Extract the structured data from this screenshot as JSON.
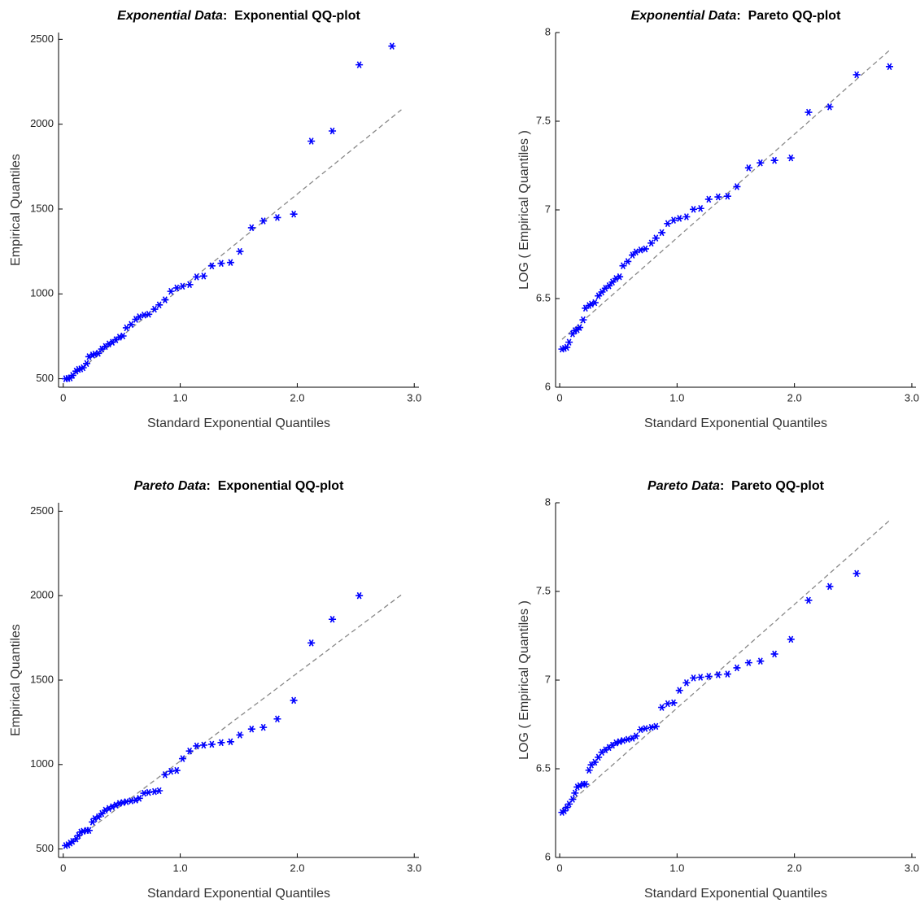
{
  "chart_data": [
    {
      "type": "scatter",
      "title": [
        "Exponential Data",
        ":  Exponential QQ-plot"
      ],
      "xlabel": "Standard Exponential Quantiles",
      "ylabel": "Empirical Quantiles",
      "xlim": [
        -0.04,
        3.04
      ],
      "ylim": [
        450,
        2540
      ],
      "xticks": [
        0,
        {
          "value": 1,
          "label": "1.0"
        },
        {
          "value": 2,
          "label": "2.0"
        },
        {
          "value": 3,
          "label": "3.0"
        }
      ],
      "yticks": [
        500,
        1000,
        1500,
        2000,
        2500
      ],
      "series": [
        {
          "color": "#0000ff",
          "x": [
            0.02,
            0.04,
            0.06,
            0.08,
            0.11,
            0.13,
            0.15,
            0.17,
            0.2,
            0.22,
            0.25,
            0.27,
            0.3,
            0.33,
            0.36,
            0.39,
            0.42,
            0.45,
            0.48,
            0.51,
            0.54,
            0.58,
            0.62,
            0.65,
            0.69,
            0.73,
            0.78,
            0.82,
            0.87,
            0.92,
            0.97,
            1.02,
            1.08,
            1.14,
            1.2,
            1.27,
            1.35,
            1.43,
            1.51,
            1.61,
            1.71,
            1.83,
            1.97,
            2.12,
            2.3,
            2.53,
            2.81
          ],
          "values": [
            500,
            502,
            505,
            520,
            545,
            555,
            558,
            565,
            590,
            630,
            640,
            645,
            650,
            675,
            690,
            705,
            715,
            730,
            745,
            752,
            800,
            820,
            850,
            865,
            875,
            880,
            910,
            935,
            965,
            1015,
            1035,
            1045,
            1055,
            1100,
            1105,
            1165,
            1180,
            1185,
            1250,
            1390,
            1430,
            1450,
            1470,
            1900,
            1960,
            2350,
            2460
          ]
        }
      ],
      "reference_line": {
        "color": "#888888",
        "x": [
          0.05,
          2.89
        ],
        "y": [
          500,
          2085
        ]
      }
    },
    {
      "type": "scatter",
      "title": [
        "Exponential Data",
        ":  Pareto QQ-plot"
      ],
      "xlabel": "Standard Exponential Quantiles",
      "ylabel": "LOG ( Empirical Quantiles )",
      "xlim": [
        -0.035,
        3.035
      ],
      "ylim": [
        6,
        8
      ],
      "xticks": [
        0,
        {
          "value": 1,
          "label": "1.0"
        },
        {
          "value": 2,
          "label": "2.0"
        },
        {
          "value": 3,
          "label": "3.0"
        }
      ],
      "yticks": [
        6,
        6.5,
        7,
        7.5,
        8
      ],
      "series": [
        {
          "color": "#0000ff",
          "x": [
            0.02,
            0.04,
            0.06,
            0.08,
            0.11,
            0.13,
            0.15,
            0.17,
            0.2,
            0.22,
            0.25,
            0.27,
            0.3,
            0.33,
            0.36,
            0.39,
            0.42,
            0.45,
            0.48,
            0.51,
            0.54,
            0.58,
            0.62,
            0.65,
            0.69,
            0.73,
            0.78,
            0.82,
            0.87,
            0.92,
            0.97,
            1.02,
            1.08,
            1.14,
            1.2,
            1.27,
            1.35,
            1.43,
            1.51,
            1.61,
            1.71,
            1.83,
            1.97,
            2.12,
            2.3,
            2.53,
            2.81
          ],
          "values": [
            6.215,
            6.219,
            6.225,
            6.254,
            6.301,
            6.319,
            6.324,
            6.337,
            6.38,
            6.446,
            6.461,
            6.469,
            6.477,
            6.515,
            6.537,
            6.558,
            6.572,
            6.593,
            6.613,
            6.623,
            6.685,
            6.709,
            6.745,
            6.763,
            6.774,
            6.78,
            6.813,
            6.841,
            6.872,
            6.923,
            6.942,
            6.952,
            6.961,
            7.003,
            7.008,
            7.06,
            7.073,
            7.077,
            7.131,
            7.237,
            7.265,
            7.279,
            7.293,
            7.55,
            7.581,
            7.762,
            7.808
          ]
        }
      ],
      "reference_line": {
        "color": "#888888",
        "x": [
          0.02,
          2.81
        ],
        "y": [
          6.27,
          7.9
        ]
      }
    },
    {
      "type": "scatter",
      "title": [
        "Pareto Data",
        ":  Exponential QQ-plot"
      ],
      "xlabel": "Standard Exponential Quantiles",
      "ylabel": "Empirical Quantiles",
      "xlim": [
        -0.04,
        3.04
      ],
      "ylim": [
        450,
        2550
      ],
      "xticks": [
        0,
        {
          "value": 1,
          "label": "1.0"
        },
        {
          "value": 2,
          "label": "2.0"
        },
        {
          "value": 3,
          "label": "3.0"
        }
      ],
      "yticks": [
        500,
        1000,
        1500,
        2000,
        2500
      ],
      "series": [
        {
          "color": "#0000ff",
          "x": [
            0.02,
            0.04,
            0.06,
            0.08,
            0.11,
            0.13,
            0.15,
            0.17,
            0.2,
            0.22,
            0.25,
            0.27,
            0.3,
            0.33,
            0.36,
            0.39,
            0.42,
            0.45,
            0.48,
            0.51,
            0.54,
            0.58,
            0.62,
            0.65,
            0.69,
            0.73,
            0.78,
            0.82,
            0.87,
            0.92,
            0.97,
            1.02,
            1.08,
            1.14,
            1.2,
            1.27,
            1.35,
            1.43,
            1.51,
            1.61,
            1.71,
            1.83,
            1.97,
            2.12,
            2.3,
            2.53
          ],
          "values": [
            520,
            525,
            535,
            545,
            560,
            580,
            600,
            605,
            610,
            610,
            660,
            680,
            690,
            710,
            730,
            740,
            750,
            760,
            770,
            775,
            780,
            785,
            790,
            800,
            830,
            835,
            840,
            845,
            940,
            960,
            965,
            1035,
            1080,
            1110,
            1115,
            1120,
            1130,
            1135,
            1175,
            1210,
            1220,
            1270,
            1380,
            1720,
            1860,
            2000
          ]
        }
      ],
      "reference_line": {
        "color": "#888888",
        "x": [
          0.02,
          2.89
        ],
        "y": [
          510,
          2005
        ]
      }
    },
    {
      "type": "scatter",
      "title": [
        "Pareto Data",
        ":  Pareto QQ-plot"
      ],
      "xlabel": "Standard Exponential Quantiles",
      "ylabel": "LOG ( Empirical Quantiles )",
      "xlim": [
        -0.035,
        3.035
      ],
      "ylim": [
        6,
        8
      ],
      "xticks": [
        0,
        {
          "value": 1,
          "label": "1.0"
        },
        {
          "value": 2,
          "label": "2.0"
        },
        {
          "value": 3,
          "label": "3.0"
        }
      ],
      "yticks": [
        6,
        6.5,
        7,
        7.5,
        8
      ],
      "series": [
        {
          "color": "#0000ff",
          "x": [
            0.02,
            0.04,
            0.06,
            0.08,
            0.11,
            0.13,
            0.15,
            0.17,
            0.2,
            0.22,
            0.25,
            0.27,
            0.3,
            0.33,
            0.36,
            0.39,
            0.42,
            0.45,
            0.48,
            0.51,
            0.54,
            0.58,
            0.62,
            0.65,
            0.69,
            0.73,
            0.78,
            0.82,
            0.87,
            0.92,
            0.97,
            1.02,
            1.08,
            1.14,
            1.2,
            1.27,
            1.35,
            1.43,
            1.51,
            1.61,
            1.71,
            1.83,
            1.97,
            2.12,
            2.3,
            2.53
          ],
          "values": [
            6.254,
            6.263,
            6.282,
            6.301,
            6.328,
            6.363,
            6.397,
            6.405,
            6.413,
            6.413,
            6.492,
            6.522,
            6.537,
            6.565,
            6.593,
            6.607,
            6.62,
            6.633,
            6.646,
            6.653,
            6.659,
            6.666,
            6.672,
            6.685,
            6.721,
            6.727,
            6.733,
            6.739,
            6.846,
            6.867,
            6.872,
            6.942,
            6.985,
            7.012,
            7.016,
            7.021,
            7.03,
            7.034,
            7.069,
            7.098,
            7.107,
            7.147,
            7.23,
            7.45,
            7.528,
            7.601
          ]
        }
      ],
      "reference_line": {
        "color": "#888888",
        "x": [
          0.02,
          2.81
        ],
        "y": [
          6.27,
          7.9
        ]
      }
    }
  ]
}
